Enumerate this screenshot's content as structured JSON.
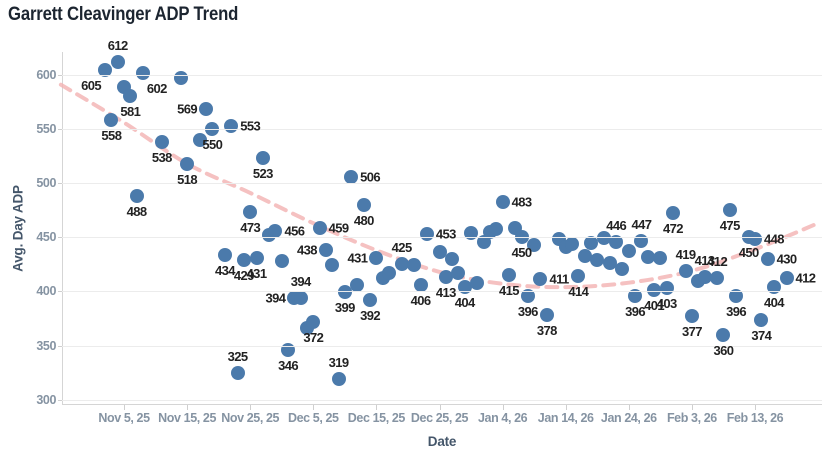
{
  "title": "Garrett Cleavinger ADP Trend",
  "colors": {
    "dot": "#4b7aab",
    "trend": "#f2b1b1",
    "point_label": "#222222",
    "grid": "#ececec",
    "axis_line": "#d5d5d5",
    "tick_text": "#8593a2",
    "axis_title": "#44566a",
    "title": "#1c2530",
    "background": "#ffffff"
  },
  "chart_data": {
    "type": "scatter",
    "title": "Garrett Cleavinger ADP Trend",
    "xlabel": "Date",
    "ylabel": "Avg. Day ADP",
    "grid": "horizontal-only",
    "legend": "none",
    "x_axis": {
      "tick_labels": [
        "Nov 5, 25",
        "Nov 15, 25",
        "Nov 25, 25",
        "Dec 5, 25",
        "Dec 15, 25",
        "Dec 25, 25",
        "Jan 4, 26",
        "Jan 14, 26",
        "Jan 24, 26",
        "Feb 3, 26",
        "Feb 13, 26"
      ],
      "tick_days": [
        4,
        14,
        24,
        34,
        44,
        54,
        64,
        74,
        84,
        94,
        104
      ]
    },
    "y_axis": {
      "tick_labels": [
        "300",
        "350",
        "400",
        "450",
        "500",
        "550",
        "600"
      ],
      "tick_values": [
        300,
        350,
        400,
        450,
        500,
        550,
        600
      ],
      "ylim": [
        290,
        625
      ]
    },
    "points": [
      {
        "day": 1,
        "adp": 605,
        "label": "605",
        "label_pos": "bl"
      },
      {
        "day": 2,
        "adp": 558,
        "label": "558",
        "label_pos": "b"
      },
      {
        "day": 3,
        "adp": 612,
        "label": "612",
        "label_pos": "a"
      },
      {
        "day": 4,
        "adp": 589,
        "label": "",
        "label_pos": ""
      },
      {
        "day": 5,
        "adp": 581,
        "label": "581",
        "label_pos": "b"
      },
      {
        "day": 6,
        "adp": 488,
        "label": "488",
        "label_pos": "b"
      },
      {
        "day": 7,
        "adp": 602,
        "label": "602",
        "label_pos": "br"
      },
      {
        "day": 10,
        "adp": 538,
        "label": "538",
        "label_pos": "b"
      },
      {
        "day": 13,
        "adp": 597,
        "label": "",
        "label_pos": ""
      },
      {
        "day": 14,
        "adp": 518,
        "label": "518",
        "label_pos": "b"
      },
      {
        "day": 16,
        "adp": 540,
        "label": "",
        "label_pos": ""
      },
      {
        "day": 17,
        "adp": 569,
        "label": "569",
        "label_pos": "l"
      },
      {
        "day": 18,
        "adp": 550,
        "label": "550",
        "label_pos": "b"
      },
      {
        "day": 21,
        "adp": 553,
        "label": "553",
        "label_pos": "r"
      },
      {
        "day": 24,
        "adp": 473,
        "label": "473",
        "label_pos": "b"
      },
      {
        "day": 26,
        "adp": 523,
        "label": "523",
        "label_pos": "b"
      },
      {
        "day": 20,
        "adp": 434,
        "label": "434",
        "label_pos": "b"
      },
      {
        "day": 22,
        "adp": 325,
        "label": "325",
        "label_pos": "a"
      },
      {
        "day": 23,
        "adp": 429,
        "label": "429",
        "label_pos": "b"
      },
      {
        "day": 25,
        "adp": 431,
        "label": "431",
        "label_pos": "b"
      },
      {
        "day": 27,
        "adp": 452,
        "label": "",
        "label_pos": ""
      },
      {
        "day": 28,
        "adp": 456,
        "label": "456",
        "label_pos": "r"
      },
      {
        "day": 29,
        "adp": 428,
        "label": "",
        "label_pos": ""
      },
      {
        "day": 30,
        "adp": 346,
        "label": "346",
        "label_pos": "b"
      },
      {
        "day": 31,
        "adp": 394,
        "label": "394",
        "label_pos": "l"
      },
      {
        "day": 32,
        "adp": 394,
        "label": "394",
        "label_pos": "a"
      },
      {
        "day": 33,
        "adp": 366,
        "label": "",
        "label_pos": ""
      },
      {
        "day": 34,
        "adp": 372,
        "label": "372",
        "label_pos": "b"
      },
      {
        "day": 35,
        "adp": 459,
        "label": "459",
        "label_pos": "r"
      },
      {
        "day": 36,
        "adp": 438,
        "label": "438",
        "label_pos": "l"
      },
      {
        "day": 37,
        "adp": 424,
        "label": "",
        "label_pos": ""
      },
      {
        "day": 38,
        "adp": 319,
        "label": "319",
        "label_pos": "a"
      },
      {
        "day": 39,
        "adp": 399,
        "label": "399",
        "label_pos": "b"
      },
      {
        "day": 40,
        "adp": 506,
        "label": "506",
        "label_pos": "r"
      },
      {
        "day": 41,
        "adp": 406,
        "label": "",
        "label_pos": ""
      },
      {
        "day": 42,
        "adp": 480,
        "label": "480",
        "label_pos": "b"
      },
      {
        "day": 43,
        "adp": 392,
        "label": "392",
        "label_pos": "b"
      },
      {
        "day": 44,
        "adp": 431,
        "label": "431",
        "label_pos": "l"
      },
      {
        "day": 45,
        "adp": 412,
        "label": "",
        "label_pos": ""
      },
      {
        "day": 46,
        "adp": 417,
        "label": "",
        "label_pos": ""
      },
      {
        "day": 48,
        "adp": 425,
        "label": "425",
        "label_pos": "a"
      },
      {
        "day": 50,
        "adp": 424,
        "label": "",
        "label_pos": ""
      },
      {
        "day": 51,
        "adp": 406,
        "label": "406",
        "label_pos": "b"
      },
      {
        "day": 52,
        "adp": 453,
        "label": "453",
        "label_pos": "r"
      },
      {
        "day": 54,
        "adp": 436,
        "label": "",
        "label_pos": ""
      },
      {
        "day": 55,
        "adp": 413,
        "label": "413",
        "label_pos": "b"
      },
      {
        "day": 56,
        "adp": 430,
        "label": "",
        "label_pos": ""
      },
      {
        "day": 57,
        "adp": 417,
        "label": "",
        "label_pos": ""
      },
      {
        "day": 58,
        "adp": 404,
        "label": "404",
        "label_pos": "b"
      },
      {
        "day": 59,
        "adp": 454,
        "label": "",
        "label_pos": ""
      },
      {
        "day": 60,
        "adp": 408,
        "label": "",
        "label_pos": ""
      },
      {
        "day": 61,
        "adp": 446,
        "label": "",
        "label_pos": ""
      },
      {
        "day": 62,
        "adp": 455,
        "label": "",
        "label_pos": ""
      },
      {
        "day": 63,
        "adp": 458,
        "label": "",
        "label_pos": ""
      },
      {
        "day": 64,
        "adp": 483,
        "label": "483",
        "label_pos": "r"
      },
      {
        "day": 65,
        "adp": 415,
        "label": "415",
        "label_pos": "b"
      },
      {
        "day": 66,
        "adp": 459,
        "label": "",
        "label_pos": ""
      },
      {
        "day": 67,
        "adp": 450,
        "label": "450",
        "label_pos": "b"
      },
      {
        "day": 68,
        "adp": 396,
        "label": "396",
        "label_pos": "b"
      },
      {
        "day": 69,
        "adp": 443,
        "label": "",
        "label_pos": ""
      },
      {
        "day": 70,
        "adp": 411,
        "label": "411",
        "label_pos": "r"
      },
      {
        "day": 71,
        "adp": 378,
        "label": "378",
        "label_pos": "b"
      },
      {
        "day": 73,
        "adp": 448,
        "label": "",
        "label_pos": ""
      },
      {
        "day": 74,
        "adp": 441,
        "label": "",
        "label_pos": ""
      },
      {
        "day": 75,
        "adp": 444,
        "label": "",
        "label_pos": ""
      },
      {
        "day": 76,
        "adp": 414,
        "label": "414",
        "label_pos": "b"
      },
      {
        "day": 77,
        "adp": 433,
        "label": "",
        "label_pos": ""
      },
      {
        "day": 78,
        "adp": 445,
        "label": "",
        "label_pos": ""
      },
      {
        "day": 79,
        "adp": 429,
        "label": "",
        "label_pos": ""
      },
      {
        "day": 80,
        "adp": 449,
        "label": "",
        "label_pos": ""
      },
      {
        "day": 81,
        "adp": 426,
        "label": "",
        "label_pos": ""
      },
      {
        "day": 82,
        "adp": 446,
        "label": "446",
        "label_pos": "a"
      },
      {
        "day": 83,
        "adp": 421,
        "label": "",
        "label_pos": ""
      },
      {
        "day": 84,
        "adp": 437,
        "label": "",
        "label_pos": ""
      },
      {
        "day": 85,
        "adp": 396,
        "label": "396",
        "label_pos": "b"
      },
      {
        "day": 86,
        "adp": 447,
        "label": "447",
        "label_pos": "a"
      },
      {
        "day": 87,
        "adp": 432,
        "label": "",
        "label_pos": ""
      },
      {
        "day": 88,
        "adp": 401,
        "label": "401",
        "label_pos": "b"
      },
      {
        "day": 89,
        "adp": 431,
        "label": "",
        "label_pos": ""
      },
      {
        "day": 90,
        "adp": 403,
        "label": "403",
        "label_pos": "b"
      },
      {
        "day": 91,
        "adp": 472,
        "label": "472",
        "label_pos": "b"
      },
      {
        "day": 93,
        "adp": 419,
        "label": "419",
        "label_pos": "a"
      },
      {
        "day": 94,
        "adp": 377,
        "label": "377",
        "label_pos": "b"
      },
      {
        "day": 95,
        "adp": 410,
        "label": "",
        "label_pos": ""
      },
      {
        "day": 96,
        "adp": 413,
        "label": "413",
        "label_pos": "a"
      },
      {
        "day": 98,
        "adp": 412,
        "label": "412",
        "label_pos": "a"
      },
      {
        "day": 99,
        "adp": 360,
        "label": "360",
        "label_pos": "b"
      },
      {
        "day": 100,
        "adp": 475,
        "label": "475",
        "label_pos": "b"
      },
      {
        "day": 101,
        "adp": 396,
        "label": "396",
        "label_pos": "b"
      },
      {
        "day": 103,
        "adp": 450,
        "label": "450",
        "label_pos": "b"
      },
      {
        "day": 104,
        "adp": 448,
        "label": "448",
        "label_pos": "r"
      },
      {
        "day": 105,
        "adp": 374,
        "label": "374",
        "label_pos": "b"
      },
      {
        "day": 106,
        "adp": 430,
        "label": "430",
        "label_pos": "r"
      },
      {
        "day": 107,
        "adp": 404,
        "label": "404",
        "label_pos": "b"
      },
      {
        "day": 109,
        "adp": 412,
        "label": "412",
        "label_pos": "r"
      }
    ],
    "trend": {
      "style": "dashed",
      "samples": [
        {
          "day": -6,
          "adp": 591
        },
        {
          "day": 4,
          "adp": 556
        },
        {
          "day": 14,
          "adp": 518
        },
        {
          "day": 24,
          "adp": 491
        },
        {
          "day": 34,
          "adp": 463
        },
        {
          "day": 44,
          "adp": 438
        },
        {
          "day": 54,
          "adp": 418
        },
        {
          "day": 64,
          "adp": 407
        },
        {
          "day": 74,
          "adp": 404
        },
        {
          "day": 84,
          "adp": 408
        },
        {
          "day": 94,
          "adp": 419
        },
        {
          "day": 104,
          "adp": 439
        },
        {
          "day": 114,
          "adp": 463
        }
      ]
    }
  }
}
